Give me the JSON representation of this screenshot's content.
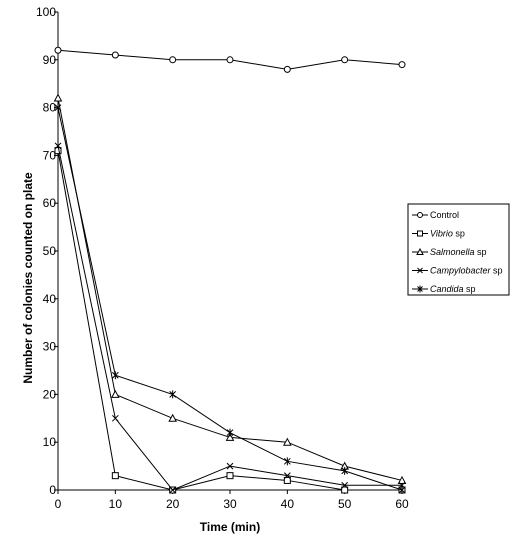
{
  "chart_data": {
    "type": "line",
    "xlabel": "Time (min)",
    "ylabel": "Number of colonies counted on plate",
    "xlim": [
      0,
      60
    ],
    "ylim": [
      0,
      100
    ],
    "x_ticks": [
      "0",
      "10",
      "20",
      "30",
      "40",
      "50",
      "60"
    ],
    "y_ticks": [
      "0",
      "10",
      "20",
      "30",
      "40",
      "50",
      "60",
      "70",
      "80",
      "90",
      "100"
    ],
    "x": [
      0,
      10,
      20,
      30,
      40,
      50,
      60
    ],
    "grid": false,
    "legend_position": "right",
    "line_color": "#000000",
    "series": [
      {
        "name": "Control",
        "italic": "",
        "suffix": "",
        "marker": "circle",
        "values": [
          92,
          91,
          90,
          90,
          88,
          90,
          89
        ]
      },
      {
        "name": "Vibrio sp",
        "italic": "Vibrio",
        "suffix": " sp",
        "marker": "square",
        "values": [
          71,
          3,
          0,
          3,
          2,
          0,
          0
        ]
      },
      {
        "name": "Salmonella sp",
        "italic": "Salmonella",
        "suffix": " sp",
        "marker": "triangle",
        "values": [
          82,
          20,
          15,
          11,
          10,
          5,
          2
        ]
      },
      {
        "name": "Campylobacter sp",
        "italic": "Campylobacter",
        "suffix": " sp",
        "marker": "x",
        "values": [
          72,
          15,
          0,
          5,
          3,
          1,
          1
        ]
      },
      {
        "name": "Candida sp",
        "italic": "Candida",
        "suffix": " sp",
        "marker": "asterisk",
        "values": [
          80,
          24,
          20,
          12,
          6,
          4,
          0
        ]
      }
    ]
  }
}
